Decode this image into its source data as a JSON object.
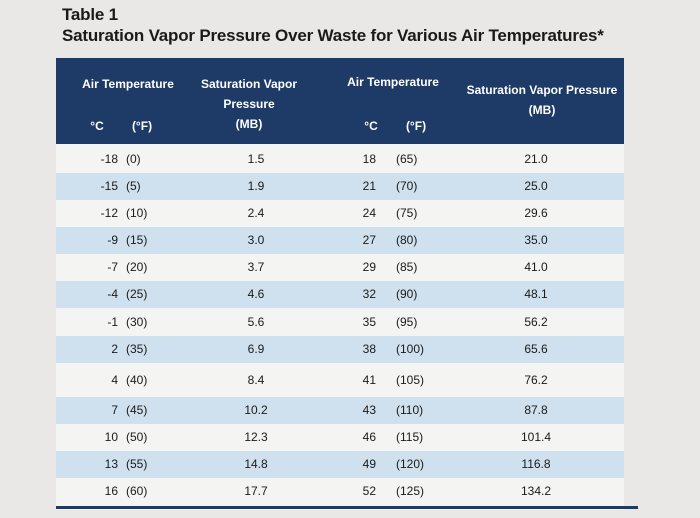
{
  "title": "Table 1",
  "subtitle": "Saturation Vapor Pressure Over Waste for Various Air Temperatures*",
  "header": {
    "air_temp_1": "Air Temperature",
    "svp_1_line1": "Saturation Vapor",
    "svp_1_line2": "Pressure",
    "svp_1_unit": "(MB)",
    "air_temp_2": "Air Temperature",
    "svp_2": "Saturation Vapor Pressure",
    "svp_2_unit": "(MB)",
    "c_label": "°C",
    "f_label": "(°F)"
  },
  "rows": [
    {
      "c1": "-18",
      "f1": "(0)",
      "p1": "1.5",
      "c2": "18",
      "f2": "(65)",
      "p2": "21.0"
    },
    {
      "c1": "-15",
      "f1": "(5)",
      "p1": "1.9",
      "c2": "21",
      "f2": "(70)",
      "p2": "25.0"
    },
    {
      "c1": "-12",
      "f1": "(10)",
      "p1": "2.4",
      "c2": "24",
      "f2": "(75)",
      "p2": "29.6"
    },
    {
      "c1": "-9",
      "f1": "(15)",
      "p1": "3.0",
      "c2": "27",
      "f2": "(80)",
      "p2": "35.0"
    },
    {
      "c1": "-7",
      "f1": "(20)",
      "p1": "3.7",
      "c2": "29",
      "f2": "(85)",
      "p2": "41.0"
    },
    {
      "c1": "-4",
      "f1": "(25)",
      "p1": "4.6",
      "c2": "32",
      "f2": "(90)",
      "p2": "48.1"
    },
    {
      "c1": "-1",
      "f1": "(30)",
      "p1": "5.6",
      "c2": "35",
      "f2": "(95)",
      "p2": "56.2"
    },
    {
      "c1": "2",
      "f1": "(35)",
      "p1": "6.9",
      "c2": "38",
      "f2": "(100)",
      "p2": "65.6"
    },
    {
      "c1": "4",
      "f1": "(40)",
      "p1": "8.4",
      "c2": "41",
      "f2": "(105)",
      "p2": "76.2"
    },
    {
      "c1": "7",
      "f1": "(45)",
      "p1": "10.2",
      "c2": "43",
      "f2": "(110)",
      "p2": "87.8"
    },
    {
      "c1": "10",
      "f1": "(50)",
      "p1": "12.3",
      "c2": "46",
      "f2": "(115)",
      "p2": "101.4"
    },
    {
      "c1": "13",
      "f1": "(55)",
      "p1": "14.8",
      "c2": "49",
      "f2": "(120)",
      "p2": "116.8"
    },
    {
      "c1": "16",
      "f1": "(60)",
      "p1": "17.7",
      "c2": "52",
      "f2": "(125)",
      "p2": "134.2"
    }
  ],
  "colors": {
    "header": "#1e3a66",
    "shade": "#cfe1ee"
  }
}
